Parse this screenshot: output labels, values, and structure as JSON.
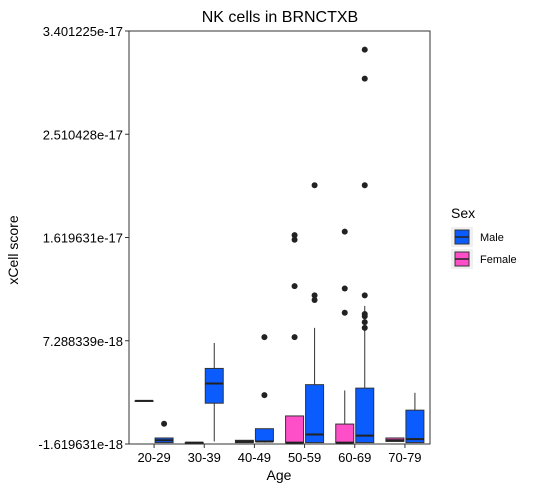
{
  "chart_data": {
    "type": "box",
    "title": "NK cells in BRNCTXB",
    "xlabel": "Age",
    "ylabel": "xCell score",
    "ylim": [
      -1.619631e-18,
      3.401225e-17
    ],
    "yticks": [
      "-1.619631e-18",
      "7.288339e-18",
      "1.619631e-17",
      "2.510428e-17",
      "3.401225e-17"
    ],
    "ytick_values": [
      -1.619631e-18,
      7.288339e-18,
      1.619631e-17,
      2.510428e-17,
      3.401225e-17
    ],
    "categories": [
      "20-29",
      "30-39",
      "40-49",
      "50-59",
      "60-69",
      "70-79"
    ],
    "legend": {
      "title": "Sex",
      "position": "right",
      "entries": [
        {
          "name": "Male",
          "color": "#0a5cff"
        },
        {
          "name": "Female",
          "color": "#ff4fc8"
        }
      ]
    },
    "grid": false,
    "series": [
      {
        "name": "Male",
        "color": "#0a5cff",
        "boxes": [
          {
            "category": "20-29",
            "min": -1.5e-18,
            "q1": -1.5e-18,
            "median": -1.3e-18,
            "q3": -1.1e-18,
            "max": -1.1e-18,
            "outliers": [
              1.3e-19
            ]
          },
          {
            "category": "30-39",
            "min": -1.4e-18,
            "q1": 1.9e-18,
            "median": 3.6e-18,
            "q3": 4.9e-18,
            "max": 7.1e-18,
            "outliers": []
          },
          {
            "category": "40-49",
            "min": -1.5e-18,
            "q1": -1.4e-18,
            "median": -1.4e-18,
            "q3": -3e-19,
            "max": -3e-19,
            "outliers": [
              2.6e-18,
              7.6e-18
            ]
          },
          {
            "category": "50-59",
            "min": -1.5e-18,
            "q1": -1.5e-18,
            "median": -8e-19,
            "q3": 3.5e-18,
            "max": 8.4e-18,
            "outliers": [
              1.12e-17,
              1.08e-17,
              2.07e-17
            ]
          },
          {
            "category": "60-69",
            "min": -1.5e-18,
            "q1": -1.5e-18,
            "median": -9e-19,
            "q3": 3.2e-18,
            "max": 1.03e-17,
            "outliers": [
              8.4e-18,
              8.9e-18,
              9.4e-18,
              9.6e-18,
              1.12e-17,
              2.07e-17,
              2.99e-17,
              3.24e-17
            ]
          },
          {
            "category": "70-79",
            "min": -1.5e-18,
            "q1": -1.5e-18,
            "median": -1.2e-18,
            "q3": 1.3e-18,
            "max": 2.8e-18,
            "outliers": []
          }
        ]
      },
      {
        "name": "Female",
        "color": "#ff4fc8",
        "boxes": [
          {
            "category": "20-29",
            "min": 2.1e-18,
            "q1": 2.1e-18,
            "median": 2.1e-18,
            "q3": 2.1e-18,
            "max": 2.1e-18,
            "outliers": []
          },
          {
            "category": "30-39",
            "min": -1.5e-18,
            "q1": -1.5e-18,
            "median": -1.5e-18,
            "q3": -1.5e-18,
            "max": -1.5e-18,
            "outliers": []
          },
          {
            "category": "40-49",
            "min": -1.5e-18,
            "q1": -1.5e-18,
            "median": -1.4e-18,
            "q3": -1.3e-18,
            "max": -1.3e-18,
            "outliers": []
          },
          {
            "category": "50-59",
            "min": -1.5e-18,
            "q1": -1.5e-18,
            "median": -1.5e-18,
            "q3": 8e-19,
            "max": 8e-19,
            "outliers": [
              7.6e-18,
              1.2e-17,
              1.6e-17,
              1.64e-17
            ]
          },
          {
            "category": "60-69",
            "min": -1.5e-18,
            "q1": -1.5e-18,
            "median": -1.5e-18,
            "q3": 1e-19,
            "max": 3e-18,
            "outliers": [
              9.7e-18,
              1.18e-17,
              1.67e-17
            ]
          },
          {
            "category": "70-79",
            "min": -1.4e-18,
            "q1": -1.4e-18,
            "median": -1.3e-18,
            "q3": -1.1e-18,
            "max": -1.1e-18,
            "outliers": []
          }
        ]
      }
    ]
  }
}
